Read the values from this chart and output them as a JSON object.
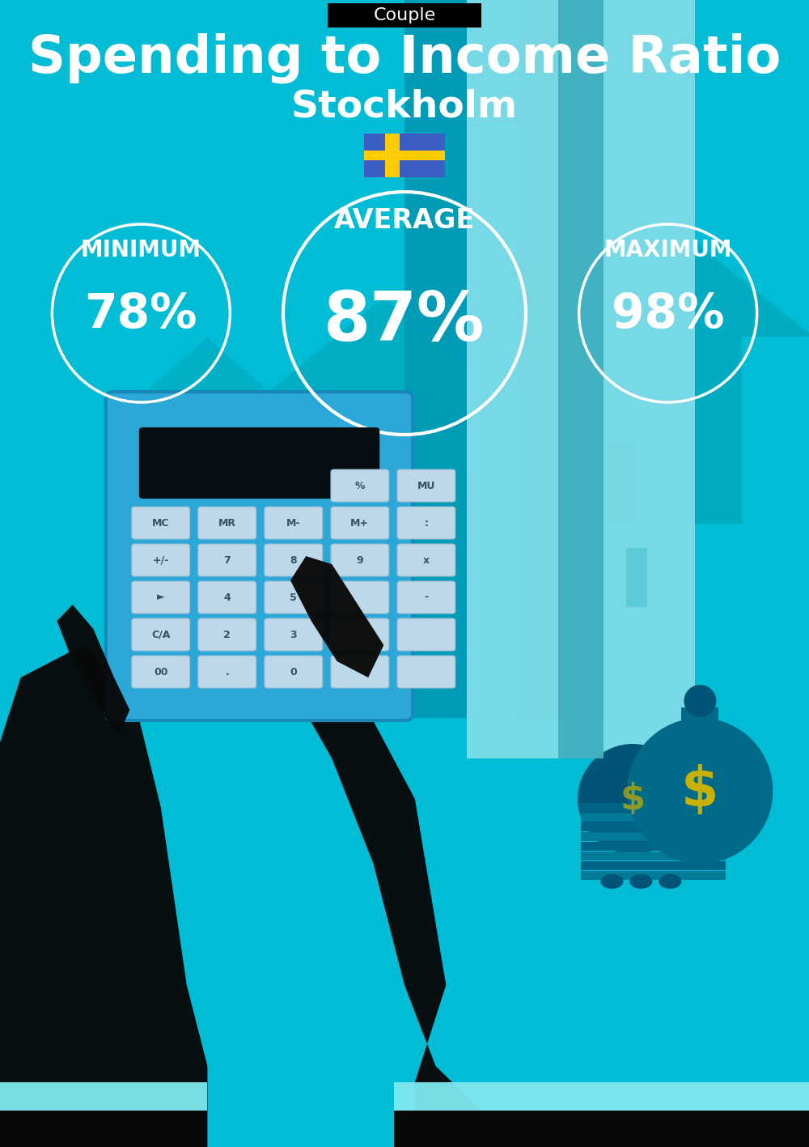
{
  "bg_color": "#00BCD4",
  "tag_text": "Couple",
  "tag_bg": "#000000",
  "tag_fg": "#ffffff",
  "main_title": "Spending to Income Ratio",
  "subtitle": "Stockholm",
  "min_label": "MINIMUM",
  "avg_label": "AVERAGE",
  "max_label": "MAXIMUM",
  "min_value": "78%",
  "avg_value": "87%",
  "max_value": "98%",
  "text_color": "#ffffff",
  "circle_color": "#ffffff",
  "flag_blue": "#3B5EC6",
  "flag_yellow": "#FFCC00",
  "arrow_color": "#00AABF",
  "house_color": "#009BB5",
  "house_light": "#7DDDE8",
  "house_dark": "#0088A0",
  "house_darker": "#006680",
  "calc_body": "#2BA8D8",
  "calc_side": "#1888B8",
  "calc_screen": "#050E14",
  "calc_btn": "#BDD8E8",
  "calc_btn_border": "#9ABCD0",
  "hand_color": "#090909",
  "cuff_color": "#80E8F0",
  "money_bag_color": "#006A88",
  "money_bag2_color": "#005577",
  "money_sign_color": "#C8B000",
  "bills_color": "#007A99",
  "fig_w": 10.0,
  "fig_h": 14.17
}
